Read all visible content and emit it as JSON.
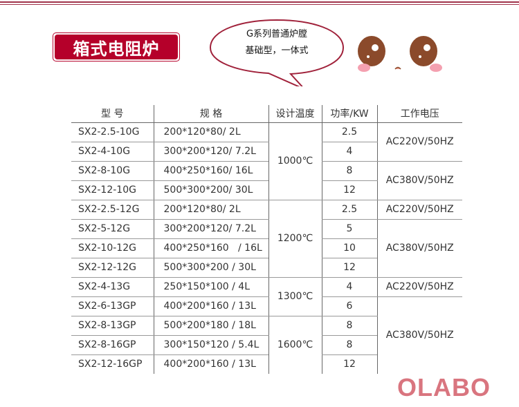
{
  "title": "箱式电阻炉",
  "bubble": {
    "line1": "G系列普通炉膛",
    "line2": "基础型，一体式"
  },
  "table": {
    "headers": [
      "型  号",
      "规  格",
      "设计温度",
      "功率/KW",
      "工作电压"
    ],
    "rows": [
      {
        "model": "SX2-2.5-10G",
        "spec": "200*120*80/ 2L",
        "power": "2.5"
      },
      {
        "model": "SX2-4-10G",
        "spec": "300*200*120/ 7.2L",
        "power": "4"
      },
      {
        "model": "SX2-8-10G",
        "spec": "400*250*160/ 16L",
        "power": "8"
      },
      {
        "model": "SX2-12-10G",
        "spec": "500*300*200/ 30L",
        "power": "12"
      },
      {
        "model": "SX2-2.5-12G",
        "spec": "200*120*80/ 2L",
        "power": "2.5"
      },
      {
        "model": "SX2-5-12G",
        "spec": "300*200*120/ 7.2L",
        "power": "5"
      },
      {
        "model": "SX2-10-12G",
        "spec": "400*250*160   / 16L",
        "power": "10"
      },
      {
        "model": "SX2-12-12G",
        "spec": "500*300*200 / 30L",
        "power": "12"
      },
      {
        "model": "SX2-4-13G",
        "spec": "250*150*100 / 4L",
        "power": "4"
      },
      {
        "model": "SX2-6-13GP",
        "spec": "400*200*160 / 13L",
        "power": "6"
      },
      {
        "model": "SX2-8-13GP",
        "spec": "500*200*180 / 18L",
        "power": "8"
      },
      {
        "model": "SX2-8-16GP",
        "spec": "300*150*120 / 5.4L",
        "power": "8"
      },
      {
        "model": "SX2-12-16GP",
        "spec": "400*200*160 / 13L",
        "power": "12"
      }
    ],
    "temps": [
      "1000℃",
      "1200℃",
      "1300℃",
      "1600℃"
    ],
    "voltages": [
      "AC220V/50HZ",
      "AC380V/50HZ",
      "AC220V/50HZ",
      "AC380V/50HZ",
      "AC220V/50HZ",
      "AC380V/50HZ"
    ]
  },
  "logo": "OLABO",
  "colors": {
    "brand": "#b5002a",
    "logo": "#d9757f"
  }
}
